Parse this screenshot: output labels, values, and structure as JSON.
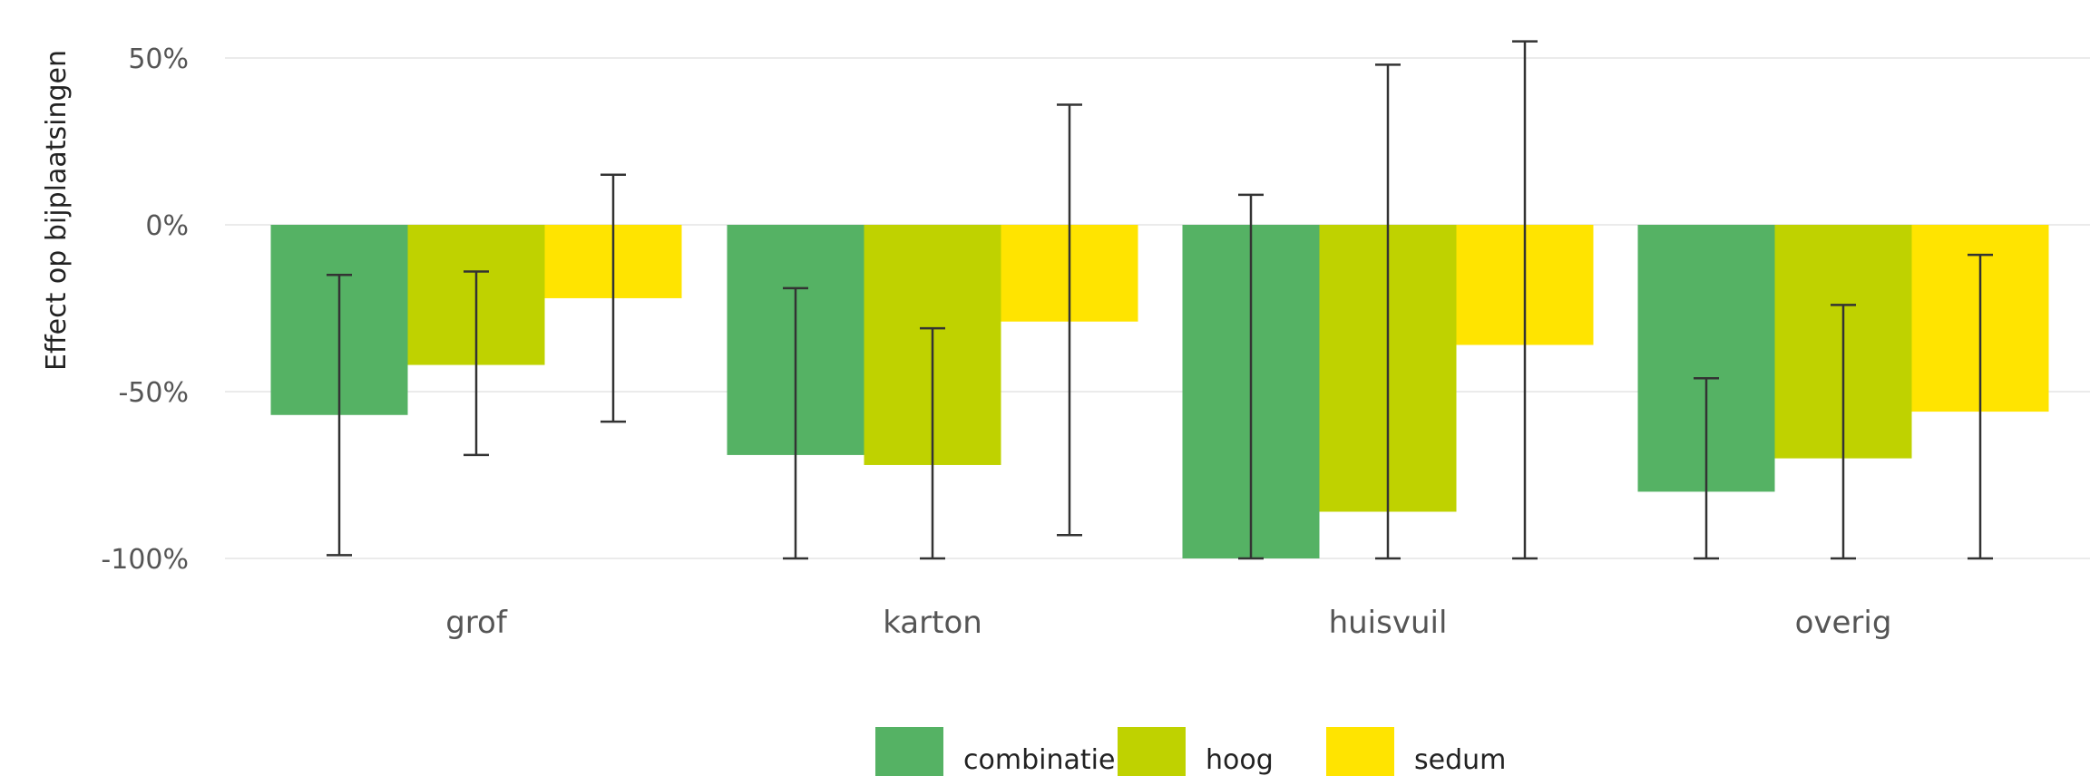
{
  "chart_data": {
    "type": "bar",
    "title": "",
    "xlabel": "",
    "ylabel": "Effect op bijplaatsingen",
    "categories": [
      "grof",
      "karton",
      "huisvuil",
      "overig"
    ],
    "ylim": [
      -100,
      50
    ],
    "yticks": [
      50,
      0,
      -50,
      -100
    ],
    "ytick_labels": [
      "50%",
      "0%",
      "-50%",
      "-100%"
    ],
    "grid": "horizontal",
    "legend_position": "bottom",
    "series": [
      {
        "name": "combinatie",
        "color": "#55b264",
        "values": [
          -57,
          -69,
          -100,
          -80
        ],
        "ci_low": [
          -99,
          -100,
          -100,
          -100
        ],
        "ci_high": [
          -15,
          -19,
          9,
          -46
        ]
      },
      {
        "name": "hoog",
        "color": "#bfd200",
        "values": [
          -42,
          -72,
          -86,
          -70
        ],
        "ci_low": [
          -69,
          -100,
          -100,
          -100
        ],
        "ci_high": [
          -14,
          -31,
          48,
          -24
        ]
      },
      {
        "name": "sedum",
        "color": "#ffe400",
        "values": [
          -22,
          -29,
          -36,
          -56
        ],
        "ci_low": [
          -59,
          -93,
          -100,
          -100
        ],
        "ci_high": [
          15,
          36,
          55,
          -9
        ]
      }
    ]
  }
}
